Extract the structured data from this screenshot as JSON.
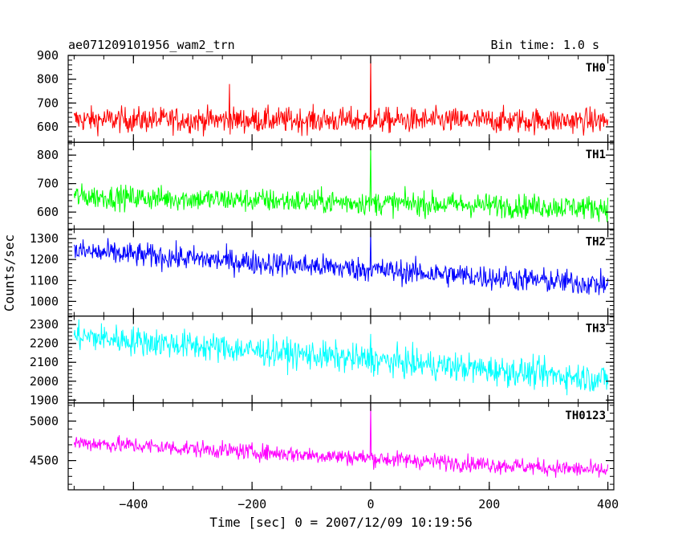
{
  "chart_data": {
    "type": "line",
    "title": "ae071209101956_wam2_trn",
    "subtitle": "Bin time: 1.0 s",
    "xlabel": "Time [sec] 0 = 2007/12/09 10:19:56",
    "ylabel": "Counts/sec",
    "xlim": [
      -510,
      410
    ],
    "x_ticks": [
      -400,
      -200,
      0,
      200,
      400
    ],
    "x_tick_labels": [
      "−400",
      "−200",
      "0",
      "200",
      "400"
    ],
    "x_range": [
      -500,
      400
    ],
    "grid": false,
    "panels": [
      {
        "name": "TH0",
        "color": "#ff0000",
        "ylim": [
          535,
          900
        ],
        "ticks": [
          600,
          700,
          800,
          900
        ],
        "start": 630,
        "end": 625,
        "noise": 38,
        "spike": 900,
        "spike_x": 0,
        "bumps": [
          {
            "x": -238,
            "y": 780
          }
        ]
      },
      {
        "name": "TH1",
        "color": "#00ff00",
        "ylim": [
          540,
          845
        ],
        "ticks": [
          600,
          700,
          800
        ],
        "start": 655,
        "end": 615,
        "noise": 30,
        "spike": 840,
        "spike_x": 0,
        "bumps": []
      },
      {
        "name": "TH2",
        "color": "#0000ff",
        "ylim": [
          930,
          1345
        ],
        "ticks": [
          1000,
          1100,
          1200,
          1300
        ],
        "start": 1240,
        "end": 1080,
        "noise": 42,
        "spike": 1345,
        "spike_x": 0,
        "bumps": []
      },
      {
        "name": "TH3",
        "color": "#00ffff",
        "ylim": [
          1885,
          2345
        ],
        "ticks": [
          1900,
          2000,
          2100,
          2200,
          2300
        ],
        "start": 2240,
        "end": 2010,
        "noise": 55,
        "spike": 2250,
        "spike_x": 0,
        "bumps": []
      },
      {
        "name": "TH0123",
        "color": "#ff00ff",
        "ylim": [
          4130,
          5230
        ],
        "ticks": [
          4500,
          5000
        ],
        "start": 4730,
        "end": 4370,
        "noise": 75,
        "spike": 5230,
        "spike_x": 0,
        "bumps": []
      }
    ]
  }
}
